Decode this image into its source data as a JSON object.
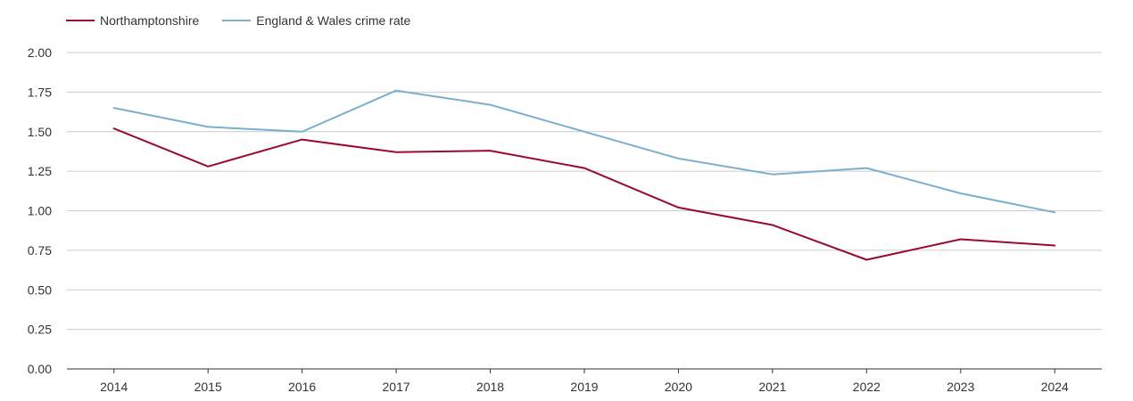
{
  "chart_data": {
    "type": "line",
    "title": "",
    "xlabel": "",
    "ylabel": "",
    "categories": [
      "2014",
      "2015",
      "2016",
      "2017",
      "2018",
      "2019",
      "2020",
      "2021",
      "2022",
      "2023",
      "2024"
    ],
    "ylim": [
      0,
      2
    ],
    "yticks": [
      "0.00",
      "0.25",
      "0.50",
      "0.75",
      "1.00",
      "1.25",
      "1.50",
      "1.75",
      "2.00"
    ],
    "grid": true,
    "legend_position": "top-left",
    "series": [
      {
        "name": "Northamptonshire",
        "color": "#9b0a2f",
        "values": [
          1.52,
          1.28,
          1.45,
          1.37,
          1.38,
          1.27,
          1.02,
          0.91,
          0.69,
          0.82,
          0.78
        ]
      },
      {
        "name": "England & Wales crime rate",
        "color": "#7aafcf",
        "values": [
          1.65,
          1.53,
          1.5,
          1.76,
          1.67,
          1.5,
          1.33,
          1.23,
          1.27,
          1.11,
          0.99
        ]
      }
    ]
  }
}
